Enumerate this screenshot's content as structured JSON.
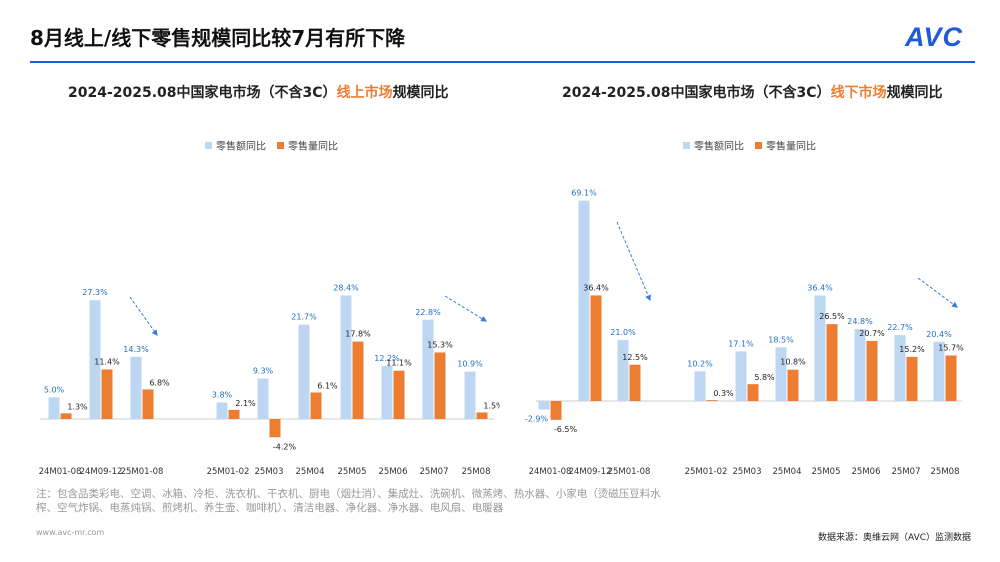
{
  "page": {
    "title": "8月线上/线下零售规模同比较7月有所下降",
    "logo": "AVC",
    "footnote": "注：包含品类彩电、空调、冰箱、冷柜、洗衣机、干衣机、厨电（烟灶消）、集成灶、洗碗机、微蒸烤、热水器、小家电（烫磁压豆料水榨、空气炸锅、电蒸炖锅、煎烤机、养生壶、咖啡机）、清洁电器、净化器、净水器、电风扇、电暖器",
    "website": "www.avc-mr.com",
    "source": "数据来源：奥维云网（AVC）监测数据",
    "colors": {
      "series1": "#bdd7f2",
      "series2": "#ed7d31",
      "accent": "#1f5ad8"
    }
  },
  "chart_data": [
    {
      "type": "bar",
      "title_prefix": "2024-2025.08中国家电市场（不含3C）",
      "title_highlight": "线上市场",
      "title_suffix": "规模同比",
      "legend_position": "top",
      "categories": [
        "24M01-08",
        "24M09-12",
        "25M01-08",
        "25M01-02",
        "25M03",
        "25M04",
        "25M05",
        "25M06",
        "25M07",
        "25M08"
      ],
      "series": [
        {
          "name": "零售额同比",
          "values": [
            5.0,
            27.3,
            14.3,
            3.8,
            9.3,
            21.7,
            28.4,
            12.2,
            22.8,
            10.9
          ],
          "labels": [
            "5.0%",
            "27.3%",
            "14.3%",
            "3.8%",
            "9.3%",
            "21.7%",
            "28.4%",
            "12.2%",
            "22.8%",
            "10.9%"
          ]
        },
        {
          "name": "零售量同比",
          "values": [
            1.3,
            11.4,
            6.8,
            2.1,
            -4.2,
            6.1,
            17.8,
            11.1,
            15.3,
            1.5
          ],
          "labels": [
            "1.3%",
            "11.4%",
            "6.8%",
            "2.1%",
            "-4.2%",
            "6.1%",
            "17.8%",
            "11.1%",
            "15.3%",
            "1.5%"
          ]
        }
      ],
      "ylim": [
        -10,
        40
      ]
    },
    {
      "type": "bar",
      "title_prefix": "2024-2025.08中国家电市场（不含3C）",
      "title_highlight": "线下市场",
      "title_suffix": "规模同比",
      "legend_position": "top",
      "categories": [
        "24M01-08",
        "24M09-12",
        "25M01-08",
        "25M01-02",
        "25M03",
        "25M04",
        "25M05",
        "25M06",
        "25M07",
        "25M08"
      ],
      "series": [
        {
          "name": "零售额同比",
          "values": [
            -2.9,
            69.1,
            21.0,
            10.2,
            17.1,
            18.5,
            36.4,
            24.8,
            22.7,
            20.4
          ],
          "labels": [
            "-2.9%",
            "69.1%",
            "21.0%",
            "10.2%",
            "17.1%",
            "18.5%",
            "36.4%",
            "24.8%",
            "22.7%",
            "20.4%"
          ]
        },
        {
          "name": "零售量同比",
          "values": [
            -6.5,
            36.4,
            12.5,
            0.3,
            5.8,
            10.8,
            26.5,
            20.7,
            15.2,
            15.7
          ],
          "labels": [
            "-6.5%",
            "36.4%",
            "12.5%",
            "0.3%",
            "5.8%",
            "10.8%",
            "26.5%",
            "20.7%",
            "15.2%",
            "15.7%"
          ]
        }
      ],
      "ylim": [
        -10,
        80
      ]
    }
  ]
}
